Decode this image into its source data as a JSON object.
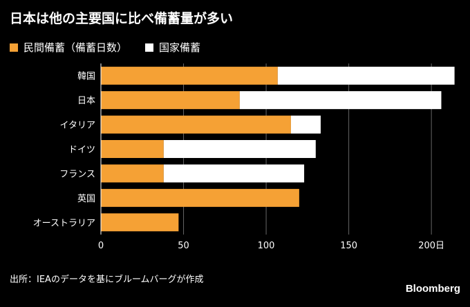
{
  "header": {
    "title": "日本は他の主要国に比べ備蓄量が多い"
  },
  "legend": [
    {
      "label": "民間備蓄（備蓄日数）",
      "color": "#f5a135"
    },
    {
      "label": "国家備蓄",
      "color": "#ffffff"
    }
  ],
  "footer": {
    "source": "出所：IEAのデータを基にブルームバーグが作成",
    "brand": "Bloomberg"
  },
  "colors": {
    "background": "#000000",
    "grid": "#666666",
    "text": "#ffffff"
  },
  "chart_data": {
    "type": "bar",
    "orientation": "horizontal",
    "stacked": true,
    "categories": [
      "韓国",
      "日本",
      "イタリア",
      "ドイツ",
      "フランス",
      "英国",
      "オーストラリア"
    ],
    "series": [
      {
        "name": "民間備蓄（備蓄日数）",
        "color": "#f5a135",
        "values": [
          107,
          84,
          115,
          38,
          38,
          120,
          47
        ]
      },
      {
        "name": "国家備蓄",
        "color": "#ffffff",
        "values": [
          107,
          122,
          18,
          92,
          85,
          0,
          0
        ]
      }
    ],
    "xlim": [
      0,
      215
    ],
    "x_ticks": [
      {
        "value": 0,
        "label": "0"
      },
      {
        "value": 50,
        "label": "50"
      },
      {
        "value": 100,
        "label": "100"
      },
      {
        "value": 150,
        "label": "150"
      },
      {
        "value": 200,
        "label": "200日"
      }
    ],
    "grid": true,
    "legend_position": "top-left"
  }
}
